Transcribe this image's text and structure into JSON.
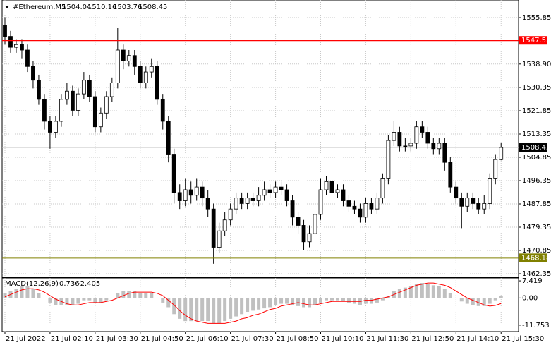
{
  "chart_data": [
    {
      "type": "candlestick",
      "symbol": "#Ethereum,M5",
      "ohlc": [
        1504.04,
        1510.16,
        1503.76,
        1508.45
      ],
      "open": [
        1553,
        1549,
        1545,
        1546,
        1544,
        1538,
        1533,
        1526,
        1518,
        1514,
        1518,
        1526,
        1529,
        1522,
        1528,
        1533,
        1527,
        1516,
        1521,
        1527,
        1532,
        1544,
        1540,
        1542,
        1538,
        1532,
        1536,
        1538,
        1526,
        1518,
        1506,
        1492,
        1489,
        1493,
        1491,
        1494,
        1490,
        1486,
        1472,
        1478,
        1482,
        1486,
        1490,
        1488,
        1490,
        1489,
        1491,
        1493,
        1492,
        1494,
        1493,
        1489,
        1483,
        1480,
        1474,
        1477,
        1484,
        1493,
        1496,
        1492,
        1493,
        1489,
        1487,
        1486,
        1483,
        1488,
        1486,
        1490,
        1497,
        1511,
        1514,
        1509,
        1509,
        1510,
        1516,
        1514,
        1510,
        1508,
        1510,
        1503,
        1494,
        1490,
        1487,
        1490,
        1488,
        1486,
        1488,
        1497,
        1504.04
      ],
      "high": [
        1556,
        1551,
        1548,
        1548,
        1546,
        1540,
        1535,
        1528,
        1520,
        1520,
        1528,
        1532,
        1531,
        1530,
        1536,
        1535,
        1529,
        1523,
        1529,
        1534,
        1552,
        1546,
        1544,
        1544,
        1540,
        1538,
        1541,
        1540,
        1528,
        1520,
        1508,
        1495,
        1497,
        1496,
        1497,
        1496,
        1493,
        1488,
        1481,
        1485,
        1488,
        1492,
        1492,
        1492,
        1492,
        1494,
        1496,
        1495,
        1496,
        1496,
        1495,
        1491,
        1485,
        1482,
        1480,
        1486,
        1497,
        1498,
        1498,
        1495,
        1495,
        1491,
        1489,
        1488,
        1490,
        1490,
        1492,
        1499,
        1513,
        1518,
        1516,
        1512,
        1512,
        1518,
        1518,
        1516,
        1512,
        1512,
        1512,
        1505,
        1496,
        1492,
        1492,
        1492,
        1490,
        1491,
        1499,
        1506,
        1510.16
      ],
      "low": [
        1546,
        1543,
        1543,
        1541,
        1536,
        1530,
        1524,
        1515,
        1508,
        1512,
        1516,
        1524,
        1520,
        1520,
        1526,
        1525,
        1514,
        1514,
        1519,
        1525,
        1530,
        1537,
        1538,
        1535,
        1530,
        1530,
        1534,
        1524,
        1515,
        1503,
        1488,
        1486,
        1487,
        1488,
        1489,
        1487,
        1483,
        1466,
        1470,
        1476,
        1480,
        1484,
        1486,
        1486,
        1487,
        1487,
        1489,
        1490,
        1490,
        1491,
        1487,
        1480,
        1477,
        1471,
        1472,
        1475,
        1482,
        1491,
        1490,
        1490,
        1487,
        1485,
        1484,
        1481,
        1481,
        1484,
        1484,
        1488,
        1495,
        1509,
        1507,
        1507,
        1507,
        1508,
        1512,
        1508,
        1506,
        1506,
        1500,
        1492,
        1488,
        1479,
        1485,
        1486,
        1484,
        1484,
        1486,
        1495,
        1503.76
      ],
      "close": [
        1549,
        1545,
        1546,
        1544,
        1538,
        1533,
        1526,
        1518,
        1514,
        1518,
        1526,
        1529,
        1522,
        1528,
        1533,
        1527,
        1516,
        1521,
        1527,
        1532,
        1544,
        1540,
        1542,
        1538,
        1532,
        1536,
        1538,
        1526,
        1518,
        1506,
        1492,
        1489,
        1493,
        1491,
        1494,
        1490,
        1486,
        1472,
        1478,
        1482,
        1486,
        1490,
        1488,
        1490,
        1489,
        1491,
        1493,
        1492,
        1494,
        1493,
        1489,
        1483,
        1480,
        1474,
        1477,
        1484,
        1493,
        1496,
        1492,
        1493,
        1489,
        1487,
        1486,
        1483,
        1488,
        1486,
        1490,
        1497,
        1511,
        1514,
        1509,
        1509,
        1510,
        1516,
        1514,
        1510,
        1508,
        1510,
        1503,
        1494,
        1490,
        1487,
        1490,
        1488,
        1486,
        1488,
        1497,
        1504.04,
        1508.45
      ],
      "xlim": [
        -0.5,
        91.1
      ],
      "xticks": [
        {
          "value": 0,
          "label": "21 Jul 2022"
        },
        {
          "value": 8,
          "label": "21 Jul 02:10"
        },
        {
          "value": 16,
          "label": "21 Jul 03:30"
        },
        {
          "value": 24,
          "label": "21 Jul 04:50"
        },
        {
          "value": 32,
          "label": "21 Jul 06:10"
        },
        {
          "value": 40,
          "label": "21 Jul 07:30"
        },
        {
          "value": 48,
          "label": "21 Jul 08:50"
        },
        {
          "value": 56,
          "label": "21 Jul 10:10"
        },
        {
          "value": 64,
          "label": "21 Jul 11:30"
        },
        {
          "value": 72,
          "label": "21 Jul 12:50"
        },
        {
          "value": 80,
          "label": "21 Jul 14:10"
        },
        {
          "value": 88,
          "label": "21 Jul 15:30"
        }
      ],
      "ylim": [
        1461.06,
        1562.29
      ],
      "yticks": [
        1555.85,
        {
          "value": 1538.9,
          "label": "1538.90"
        },
        1530.35,
        1521.85,
        1513.35,
        1504.85,
        1496.35,
        1487.85,
        1479.35,
        1470.85,
        1462.35
      ],
      "grid": true,
      "up_color": "#ffffff",
      "down_color": "#000000",
      "hlines": [
        {
          "value": 1547.55,
          "color": "#ff0000"
        },
        {
          "value": 1468.18,
          "color": "#808000"
        }
      ],
      "current_price": 1508.45
    },
    {
      "type": "macd",
      "label": "MACD(12,26,9)",
      "main": 0.736,
      "signal_value": -2.405,
      "histogram": [
        2,
        3,
        4,
        5,
        5,
        4,
        2,
        0,
        -2,
        -3,
        -3,
        -3,
        -3,
        -2.5,
        -1,
        -1,
        -2,
        -2,
        -1,
        0,
        2,
        3,
        3,
        3,
        2,
        2,
        2,
        0,
        -2,
        -4,
        -7,
        -9,
        -10,
        -10,
        -10,
        -10,
        -10,
        -11,
        -11,
        -10,
        -9,
        -8,
        -7,
        -6,
        -5.5,
        -5,
        -4.5,
        -4,
        -3,
        -2.5,
        -2.5,
        -3,
        -3.5,
        -4,
        -4,
        -3,
        -2,
        -1,
        -1,
        -1,
        -1.5,
        -2,
        -2.5,
        -3,
        -2.5,
        -2.5,
        -2,
        -1,
        1,
        3,
        4,
        4.5,
        5,
        6,
        6.5,
        6,
        5.5,
        5,
        4,
        2,
        0,
        -1.5,
        -2.5,
        -3,
        -3.5,
        -3.5,
        -2.5,
        -1,
        0.736
      ],
      "signal": [
        0.5,
        1.5,
        2.5,
        3.5,
        4,
        4,
        3.5,
        2.5,
        1,
        -0.5,
        -1.5,
        -2.5,
        -3,
        -3,
        -2.5,
        -2,
        -2,
        -2,
        -1.5,
        -1,
        0,
        1,
        2,
        2.5,
        2.5,
        2.5,
        2.5,
        2,
        1,
        -1,
        -3,
        -5.5,
        -7.5,
        -9,
        -10,
        -10.5,
        -11,
        -11,
        -11,
        -11,
        -10.5,
        -10,
        -9,
        -8.5,
        -7.5,
        -7,
        -6,
        -5,
        -4.5,
        -3.5,
        -3,
        -2.5,
        -2,
        -2.5,
        -3,
        -3,
        -2.5,
        -2,
        -1.5,
        -1.5,
        -1.5,
        -1.5,
        -1.5,
        -1.5,
        -1,
        -1,
        -0.5,
        0,
        0.5,
        1.5,
        2.5,
        3.5,
        4.5,
        5.5,
        6,
        6.5,
        6.5,
        6,
        5.5,
        4.5,
        3,
        1.5,
        0,
        -1,
        -2,
        -3,
        -3.5,
        -3.2,
        -2.405
      ],
      "hist_color": "#c0c0c0",
      "signal_color": "#ff0000",
      "ylim": [
        -14.54,
        8.66
      ],
      "yticks": [
        7.419,
        {
          "value": 0,
          "label": "0.00"
        },
        -11.753
      ]
    }
  ]
}
